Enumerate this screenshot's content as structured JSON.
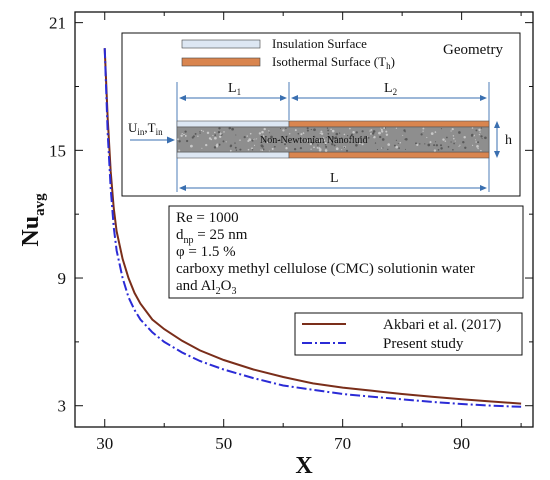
{
  "chart_data": {
    "type": "line",
    "xlabel": "X",
    "ylabel_main": "Nu",
    "ylabel_sub": "avg",
    "xlim": [
      25,
      102
    ],
    "ylim": [
      2,
      21.5
    ],
    "xticks": [
      30,
      50,
      70,
      90
    ],
    "yticks": [
      3,
      9,
      15,
      21
    ],
    "grid": false,
    "legend_position": "lower-right",
    "series": [
      {
        "name": "Akbari et al. (2017)",
        "color": "#7a2e1a",
        "style": "solid",
        "x": [
          30,
          30.5,
          31,
          31.5,
          32,
          33,
          34,
          35,
          36,
          38,
          40,
          43,
          46,
          50,
          55,
          60,
          65,
          70,
          75,
          80,
          85,
          90,
          95,
          100
        ],
        "y": [
          19.8,
          16.5,
          14.0,
          12.3,
          11.2,
          9.9,
          9.0,
          8.3,
          7.8,
          7.05,
          6.6,
          6.05,
          5.6,
          5.15,
          4.7,
          4.35,
          4.05,
          3.85,
          3.7,
          3.55,
          3.42,
          3.3,
          3.2,
          3.1
        ]
      },
      {
        "name": "Present study",
        "color": "#2b2bd6",
        "style": "dashdot",
        "x": [
          30,
          30.5,
          31,
          31.5,
          32,
          33,
          34,
          35,
          36,
          38,
          40,
          43,
          46,
          50,
          55,
          60,
          65,
          70,
          75,
          80,
          85,
          90,
          95,
          100
        ],
        "y": [
          19.8,
          15.8,
          13.2,
          11.4,
          10.3,
          9.0,
          8.1,
          7.5,
          7.05,
          6.45,
          6.0,
          5.5,
          5.1,
          4.7,
          4.3,
          3.95,
          3.75,
          3.55,
          3.42,
          3.3,
          3.18,
          3.08,
          3.0,
          2.95
        ]
      }
    ],
    "info_box": {
      "line1": "Re = 1000",
      "line2_main": "d",
      "line2_sub": "np",
      "line2_rest": " = 25 nm",
      "line3": " φ = 1.5 %",
      "line4": "carboxy methyl cellulose (CMC) solutionin water",
      "line5_main": " and Al",
      "line5_sub1": "2",
      "line5_mid": "O",
      "line5_sub2": "3"
    },
    "geometry_box": {
      "title": "Geometry",
      "legend_insulation": "Insulation Surface",
      "legend_isothermal_main": "Isothermal Surface (T",
      "legend_isothermal_sub": "h",
      "legend_isothermal_end": ")",
      "label_L1": "L",
      "label_L1_sub": "1",
      "label_L2": "L",
      "label_L2_sub": "2",
      "label_L": "L",
      "label_h": "h",
      "inlet_main": "U",
      "inlet_sub1": "in",
      "inlet_mid": ",T",
      "inlet_sub2": "in",
      "channel_label": "Non-Newtonian Nanofluid",
      "insulation_color": "#dde7f3",
      "isothermal_color": "#d9854f"
    }
  }
}
